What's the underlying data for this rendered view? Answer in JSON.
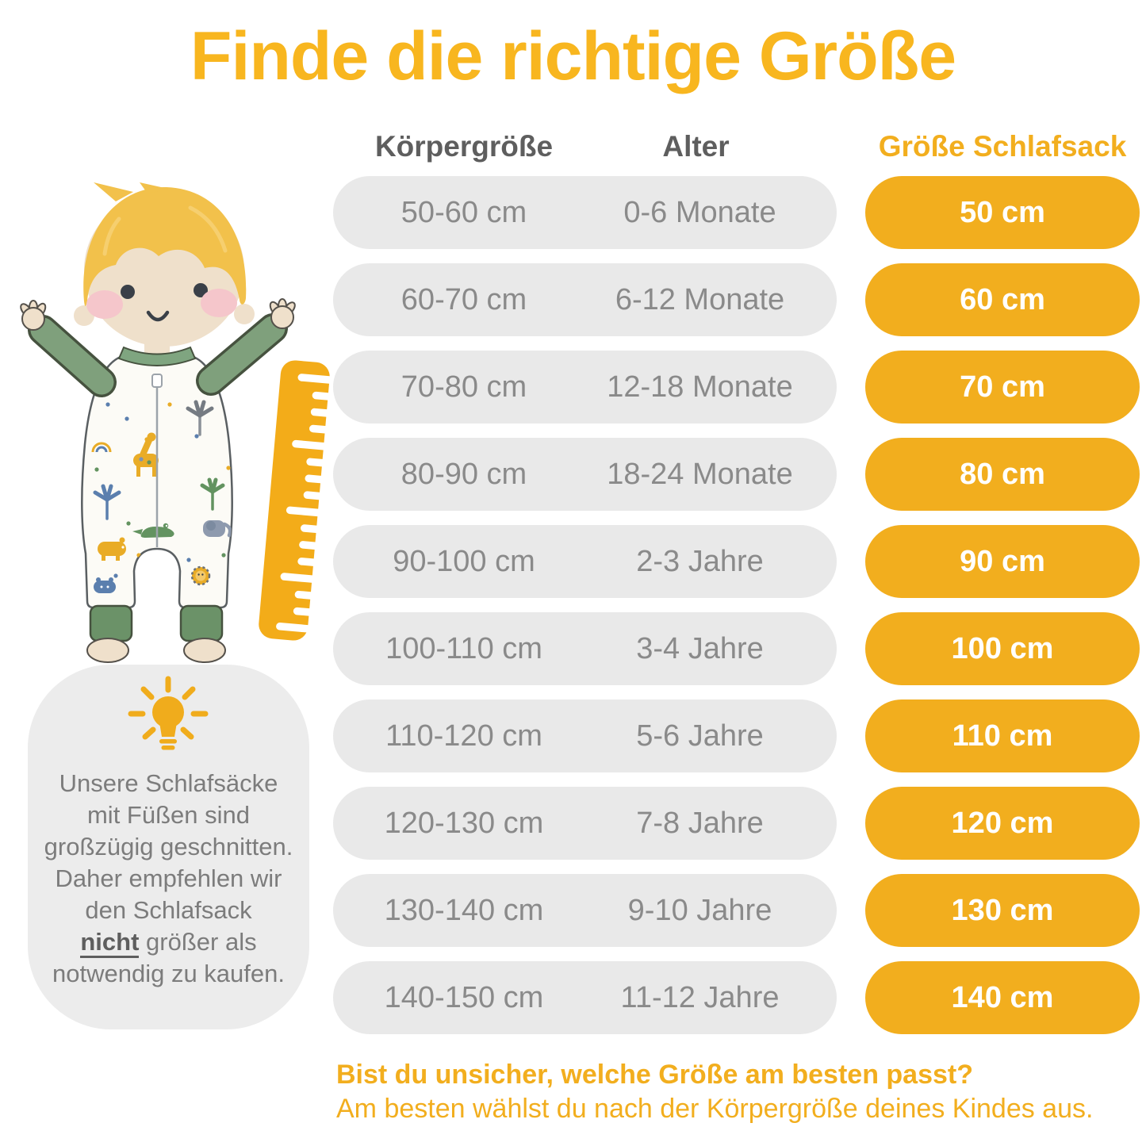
{
  "title": "Finde die richtige Größe",
  "table": {
    "headers": {
      "height": "Körpergröße",
      "age": "Alter",
      "size": "Größe Schlafsack"
    },
    "rows": [
      {
        "height": "50-60 cm",
        "age": "0-6 Monate",
        "size": "50 cm"
      },
      {
        "height": "60-70 cm",
        "age": "6-12 Monate",
        "size": "60 cm"
      },
      {
        "height": "70-80 cm",
        "age": "12-18 Monate",
        "size": "70 cm"
      },
      {
        "height": "80-90 cm",
        "age": "18-24 Monate",
        "size": "80 cm"
      },
      {
        "height": "90-100 cm",
        "age": "2-3 Jahre",
        "size": "90 cm"
      },
      {
        "height": "100-110 cm",
        "age": "3-4 Jahre",
        "size": "100 cm"
      },
      {
        "height": "110-120 cm",
        "age": "5-6 Jahre",
        "size": "110 cm"
      },
      {
        "height": "120-130 cm",
        "age": "7-8 Jahre",
        "size": "120 cm"
      },
      {
        "height": "130-140 cm",
        "age": "9-10 Jahre",
        "size": "130 cm"
      },
      {
        "height": "140-150 cm",
        "age": "11-12 Jahre",
        "size": "140 cm"
      }
    ]
  },
  "tip": {
    "lines": [
      {
        "segments": [
          {
            "text": "Unsere Schlafsäcke"
          }
        ]
      },
      {
        "segments": [
          {
            "text": "mit Füßen sind"
          }
        ]
      },
      {
        "segments": [
          {
            "text": "großzügig geschnitten."
          }
        ]
      },
      {
        "segments": [
          {
            "text": "Daher empfehlen wir"
          }
        ]
      },
      {
        "segments": [
          {
            "text": "den Schlafsack"
          }
        ]
      },
      {
        "segments": [
          {
            "text": "nicht",
            "emphasis": true
          },
          {
            "text": " größer als"
          }
        ]
      },
      {
        "segments": [
          {
            "text": "notwendig zu kaufen."
          }
        ]
      }
    ]
  },
  "footer": {
    "question": "Bist du unsicher, welche Größe am besten passt?",
    "answer": "Am besten wählst du nach der Körpergröße deines Kindes aus."
  },
  "icons": {
    "lightbulb": "lightbulb-icon",
    "ruler": "ruler-icon"
  },
  "colors": {
    "accent_yellow": "#F2AE1E",
    "title_yellow": "#F8B61F",
    "pill_gray": "#E9E9E9",
    "pill_text_gray": "#8A8A8A",
    "header_gray": "#5E5E5E",
    "tip_card_gray": "#ECECEC",
    "tip_text_gray": "#7C7C7C",
    "sleeve_green": "#7FA07C",
    "hair_gold": "#F2C14B",
    "skin": "#EFE0CB"
  }
}
